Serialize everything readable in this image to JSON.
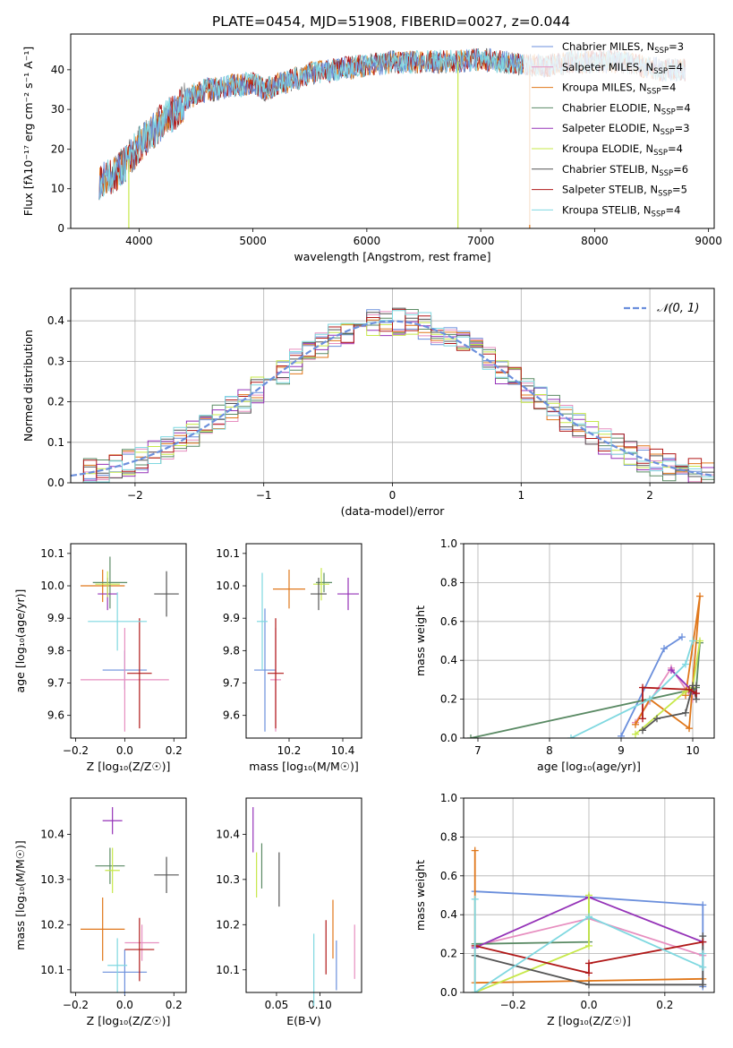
{
  "figure": {
    "title": "PLATE=0454, MJD=51908, FIBERID=0027, z=0.044"
  },
  "colors": {
    "Chabrier MILES": "#6b8fdc",
    "Salpeter MILES": "#e78fc0",
    "Kroupa MILES": "#e0771a",
    "Chabrier ELODIE": "#5a8a64",
    "Salpeter ELODIE": "#9533b8",
    "Kroupa ELODIE": "#c7e84a",
    "Chabrier STELIB": "#555555",
    "Salpeter STELIB": "#b01818",
    "Kroupa STELIB": "#7fd8e0",
    "gauss": "#6b8fdc",
    "grid": "#b0b0b0"
  },
  "legend_entries": [
    {
      "model": "Chabrier MILES",
      "label": "Chabrier MILES, N",
      "sub": "SSP",
      "eq": "=3"
    },
    {
      "model": "Salpeter MILES",
      "label": "Salpeter MILES, N",
      "sub": "SSP",
      "eq": "=4"
    },
    {
      "model": "Kroupa MILES",
      "label": "Kroupa MILES, N",
      "sub": "SSP",
      "eq": "=4"
    },
    {
      "model": "Chabrier ELODIE",
      "label": "Chabrier ELODIE, N",
      "sub": "SSP",
      "eq": "=4"
    },
    {
      "model": "Salpeter ELODIE",
      "label": "Salpeter ELODIE, N",
      "sub": "SSP",
      "eq": "=3"
    },
    {
      "model": "Kroupa ELODIE",
      "label": "Kroupa ELODIE, N",
      "sub": "SSP",
      "eq": "=4"
    },
    {
      "model": "Chabrier STELIB",
      "label": "Chabrier STELIB, N",
      "sub": "SSP",
      "eq": "=6"
    },
    {
      "model": "Salpeter STELIB",
      "label": "Salpeter STELIB, N",
      "sub": "SSP",
      "eq": "=5"
    },
    {
      "model": "Kroupa STELIB",
      "label": "Kroupa STELIB, N",
      "sub": "SSP",
      "eq": "=4"
    }
  ],
  "chart_data": [
    {
      "id": "spectrum",
      "type": "line",
      "xlabel": "wavelength [Angstrom, rest frame]",
      "ylabel": "Flux [fλ10⁻¹⁷ erg cm⁻² s⁻¹ A⁻¹]",
      "xlim": [
        3400,
        9050
      ],
      "ylim": [
        0,
        49
      ],
      "xticks": [
        4000,
        5000,
        6000,
        7000,
        8000,
        9000
      ],
      "yticks": [
        0,
        10,
        20,
        30,
        40
      ],
      "continuum": [
        [
          3650,
          12
        ],
        [
          3800,
          14
        ],
        [
          3900,
          17
        ],
        [
          4000,
          21
        ],
        [
          4100,
          24
        ],
        [
          4200,
          27
        ],
        [
          4300,
          29
        ],
        [
          4400,
          32
        ],
        [
          4500,
          34
        ],
        [
          4600,
          35
        ],
        [
          4700,
          35
        ],
        [
          4800,
          36
        ],
        [
          4900,
          36
        ],
        [
          5000,
          37
        ],
        [
          5100,
          35
        ],
        [
          5200,
          36
        ],
        [
          5300,
          37
        ],
        [
          5400,
          38
        ],
        [
          5500,
          39
        ],
        [
          5700,
          40
        ],
        [
          6000,
          41
        ],
        [
          6200,
          42
        ],
        [
          6400,
          42
        ],
        [
          6600,
          42
        ],
        [
          6800,
          42
        ],
        [
          7000,
          42.5
        ],
        [
          7200,
          42
        ],
        [
          7400,
          41
        ],
        [
          7600,
          41
        ],
        [
          7800,
          42
        ],
        [
          8000,
          42
        ],
        [
          8200,
          42
        ],
        [
          8400,
          41
        ],
        [
          8600,
          40
        ],
        [
          8800,
          40
        ]
      ],
      "noise_amplitude": 3
    },
    {
      "id": "residuals",
      "type": "histogram",
      "xlabel": "(data-model)/error",
      "ylabel": "Normed distribution",
      "xlim": [
        -2.5,
        2.5
      ],
      "ylim": [
        0,
        0.48
      ],
      "xticks": [
        -2,
        -1,
        0,
        1,
        2
      ],
      "yticks": [
        0.0,
        0.1,
        0.2,
        0.3,
        0.4
      ],
      "bin_width": 0.1,
      "legend": "𝒩(0, 1)",
      "histogram_noise": 0.035
    },
    {
      "id": "Z_vs_age",
      "type": "scatter",
      "xlabel": "Z [log₁₀(Z/Z☉)]",
      "ylabel": "age  [log₁₀(age/yr)]",
      "xlim": [
        -0.22,
        0.25
      ],
      "ylim": [
        9.53,
        10.13
      ],
      "xticks": [
        -0.2,
        0.0,
        0.2
      ],
      "yticks": [
        9.6,
        9.7,
        9.8,
        9.9,
        10.0,
        10.1
      ],
      "points": [
        {
          "model": "Chabrier MILES",
          "x": 0.0,
          "xerr": 0.09,
          "y": 9.74,
          "yerr": 0.06
        },
        {
          "model": "Salpeter MILES",
          "x": 0.0,
          "xerr": 0.18,
          "y": 9.71,
          "yerr": 0.16
        },
        {
          "model": "Kroupa MILES",
          "x": -0.09,
          "xerr": 0.09,
          "y": 10.0,
          "yerr": 0.05
        },
        {
          "model": "Chabrier ELODIE",
          "x": -0.06,
          "xerr": 0.07,
          "y": 10.01,
          "yerr": 0.08
        },
        {
          "model": "Salpeter ELODIE",
          "x": -0.07,
          "xerr": 0.04,
          "y": 9.975,
          "yerr": 0.05
        },
        {
          "model": "Kroupa ELODIE",
          "x": -0.07,
          "xerr": 0.05,
          "y": 10.005,
          "yerr": 0.04
        },
        {
          "model": "Chabrier STELIB",
          "x": 0.17,
          "xerr": 0.05,
          "y": 9.975,
          "yerr": 0.07
        },
        {
          "model": "Salpeter STELIB",
          "x": 0.06,
          "xerr": 0.05,
          "y": 9.73,
          "yerr": 0.17
        },
        {
          "model": "Kroupa STELIB",
          "x": -0.03,
          "xerr": 0.12,
          "y": 9.89,
          "yerr": 0.09
        }
      ]
    },
    {
      "id": "mass_vs_age",
      "type": "scatter",
      "xlabel": "mass [log₁₀(M/M☉)]",
      "ylabel": "",
      "xlim": [
        10.04,
        10.47
      ],
      "ylim": [
        9.53,
        10.13
      ],
      "xticks": [
        10.2,
        10.4
      ],
      "yticks": [
        9.6,
        9.7,
        9.8,
        9.9,
        10.0,
        10.1
      ],
      "points": [
        {
          "model": "Chabrier MILES",
          "x": 10.11,
          "xerr": 0.04,
          "y": 9.74,
          "yerr": 0.19
        },
        {
          "model": "Salpeter MILES",
          "x": 10.15,
          "xerr": 0.02,
          "y": 9.71,
          "yerr": 0.16
        },
        {
          "model": "Kroupa MILES",
          "x": 10.2,
          "xerr": 0.06,
          "y": 9.99,
          "yerr": 0.06
        },
        {
          "model": "Chabrier ELODIE",
          "x": 10.33,
          "xerr": 0.03,
          "y": 10.01,
          "yerr": 0.03
        },
        {
          "model": "Salpeter ELODIE",
          "x": 10.42,
          "xerr": 0.04,
          "y": 9.975,
          "yerr": 0.05
        },
        {
          "model": "Kroupa ELODIE",
          "x": 10.32,
          "xerr": 0.03,
          "y": 10.005,
          "yerr": 0.05
        },
        {
          "model": "Chabrier STELIB",
          "x": 10.31,
          "xerr": 0.03,
          "y": 9.975,
          "yerr": 0.05
        },
        {
          "model": "Salpeter STELIB",
          "x": 10.15,
          "xerr": 0.03,
          "y": 9.73,
          "yerr": 0.17
        },
        {
          "model": "Kroupa STELIB",
          "x": 10.1,
          "xerr": 0.02,
          "y": 9.89,
          "yerr": 0.15
        }
      ]
    },
    {
      "id": "age_vs_weight",
      "type": "line",
      "xlabel": "age  [log₁₀(age/yr)]",
      "ylabel": "mass weight",
      "xlim": [
        6.8,
        10.3
      ],
      "ylim": [
        0,
        1
      ],
      "xticks": [
        7,
        8,
        9,
        10
      ],
      "yticks": [
        0.0,
        0.2,
        0.4,
        0.6,
        0.8,
        1.0
      ],
      "grid": true,
      "series": [
        {
          "model": "Chabrier MILES",
          "x": [
            9.0,
            9.6,
            9.85
          ],
          "y": [
            0.01,
            0.46,
            0.52
          ]
        },
        {
          "model": "Salpeter MILES",
          "x": [
            9.2,
            9.4,
            9.7,
            10.0
          ],
          "y": [
            0.08,
            0.19,
            0.36,
            0.2
          ]
        },
        {
          "model": "Kroupa MILES",
          "x": [
            9.2,
            9.4,
            9.95,
            10.1,
            9.9
          ],
          "y": [
            0.07,
            0.2,
            0.05,
            0.73,
            0.22
          ]
        },
        {
          "model": "Chabrier ELODIE",
          "x": [
            6.9,
            10.0,
            10.05,
            10.1
          ],
          "y": [
            0.0,
            0.25,
            0.26,
            0.49
          ]
        },
        {
          "model": "Salpeter ELODIE",
          "x": [
            9.7,
            10.0,
            10.05
          ],
          "y": [
            0.35,
            0.24,
            0.23
          ]
        },
        {
          "model": "Kroupa ELODIE",
          "x": [
            9.2,
            9.9,
            10.0,
            10.1
          ],
          "y": [
            0.02,
            0.24,
            0.26,
            0.5
          ]
        },
        {
          "model": "Chabrier STELIB",
          "x": [
            9.3,
            9.5,
            9.9,
            10.0,
            10.05,
            10.05
          ],
          "y": [
            0.04,
            0.1,
            0.13,
            0.27,
            0.2,
            0.27
          ]
        },
        {
          "model": "Salpeter STELIB",
          "x": [
            9.3,
            9.3,
            9.95,
            10.05
          ],
          "y": [
            0.1,
            0.26,
            0.25,
            0.23
          ]
        },
        {
          "model": "Kroupa STELIB",
          "x": [
            8.3,
            9.4,
            9.9,
            10.0
          ],
          "y": [
            0.0,
            0.2,
            0.38,
            0.5
          ]
        }
      ]
    },
    {
      "id": "Z_vs_mass",
      "type": "scatter",
      "xlabel": "Z [log₁₀(Z/Z☉)]",
      "ylabel": "mass [log₁₀(M/M☉)]",
      "xlim": [
        -0.22,
        0.25
      ],
      "ylim": [
        10.05,
        10.48
      ],
      "xticks": [
        -0.2,
        0.0,
        0.2
      ],
      "yticks": [
        10.1,
        10.2,
        10.3,
        10.4
      ],
      "points": [
        {
          "model": "Chabrier MILES",
          "x": 0.0,
          "xerr": 0.09,
          "y": 10.095,
          "yerr": 0.05
        },
        {
          "model": "Salpeter MILES",
          "x": 0.07,
          "xerr": 0.07,
          "y": 10.16,
          "yerr": 0.04
        },
        {
          "model": "Kroupa MILES",
          "x": -0.09,
          "xerr": 0.09,
          "y": 10.19,
          "yerr": 0.07
        },
        {
          "model": "Chabrier ELODIE",
          "x": -0.06,
          "xerr": 0.06,
          "y": 10.33,
          "yerr": 0.04
        },
        {
          "model": "Salpeter ELODIE",
          "x": -0.05,
          "xerr": 0.04,
          "y": 10.43,
          "yerr": 0.03
        },
        {
          "model": "Kroupa ELODIE",
          "x": -0.05,
          "xerr": 0.03,
          "y": 10.32,
          "yerr": 0.05
        },
        {
          "model": "Chabrier STELIB",
          "x": 0.17,
          "xerr": 0.05,
          "y": 10.31,
          "yerr": 0.04
        },
        {
          "model": "Salpeter STELIB",
          "x": 0.06,
          "xerr": 0.06,
          "y": 10.145,
          "yerr": 0.07
        },
        {
          "model": "Kroupa STELIB",
          "x": -0.03,
          "xerr": 0.04,
          "y": 10.11,
          "yerr": 0.06
        }
      ]
    },
    {
      "id": "ebv_vs_mass",
      "type": "scatter",
      "xlabel": "E(B-V)",
      "ylabel": "",
      "xlim": [
        0.015,
        0.148
      ],
      "ylim": [
        10.05,
        10.48
      ],
      "xticks": [
        0.05,
        0.1
      ],
      "yticks": [
        10.1,
        10.2,
        10.3,
        10.4
      ],
      "points": [
        {
          "model": "Chabrier MILES",
          "x": 0.119,
          "xerr": 0,
          "y": 10.11,
          "yerr": 0.055
        },
        {
          "model": "Salpeter MILES",
          "x": 0.14,
          "xerr": 0,
          "y": 10.14,
          "yerr": 0.06
        },
        {
          "model": "Kroupa MILES",
          "x": 0.115,
          "xerr": 0,
          "y": 10.19,
          "yerr": 0.065
        },
        {
          "model": "Chabrier ELODIE",
          "x": 0.033,
          "xerr": 0,
          "y": 10.33,
          "yerr": 0.05
        },
        {
          "model": "Salpeter ELODIE",
          "x": 0.023,
          "xerr": 0,
          "y": 10.41,
          "yerr": 0.05
        },
        {
          "model": "Kroupa ELODIE",
          "x": 0.027,
          "xerr": 0,
          "y": 10.31,
          "yerr": 0.05
        },
        {
          "model": "Chabrier STELIB",
          "x": 0.053,
          "xerr": 0,
          "y": 10.3,
          "yerr": 0.06
        },
        {
          "model": "Salpeter STELIB",
          "x": 0.107,
          "xerr": 0,
          "y": 10.15,
          "yerr": 0.06
        },
        {
          "model": "Kroupa STELIB",
          "x": 0.093,
          "xerr": 0,
          "y": 10.1,
          "yerr": 0.08
        }
      ]
    },
    {
      "id": "Z_vs_weight",
      "type": "line",
      "xlabel": "Z [log₁₀(Z/Z☉)]",
      "ylabel": "mass weight",
      "xlim": [
        -0.33,
        0.33
      ],
      "ylim": [
        0,
        1
      ],
      "xticks": [
        -0.2,
        0.0,
        0.2
      ],
      "yticks": [
        0.0,
        0.2,
        0.4,
        0.6,
        0.8,
        1.0
      ],
      "grid": true,
      "series": [
        {
          "model": "Chabrier MILES",
          "x": [
            -0.3,
            0.0,
            0.3,
            0.3
          ],
          "y": [
            0.52,
            0.49,
            0.45,
            0.03
          ]
        },
        {
          "model": "Salpeter MILES",
          "x": [
            -0.3,
            0.0,
            0.3
          ],
          "y": [
            0.24,
            0.38,
            0.19
          ]
        },
        {
          "model": "Kroupa MILES",
          "x": [
            -0.3,
            -0.3,
            0.0,
            0.3
          ],
          "y": [
            0.73,
            0.05,
            0.06,
            0.07
          ]
        },
        {
          "model": "Chabrier ELODIE",
          "x": [
            -0.3,
            0.0,
            0.0
          ],
          "y": [
            0.25,
            0.26,
            0.49
          ]
        },
        {
          "model": "Salpeter ELODIE",
          "x": [
            -0.3,
            0.0,
            0.3
          ],
          "y": [
            0.23,
            0.49,
            0.26
          ]
        },
        {
          "model": "Kroupa ELODIE",
          "x": [
            -0.3,
            0.0,
            0.0
          ],
          "y": [
            0.0,
            0.24,
            0.5
          ]
        },
        {
          "model": "Chabrier STELIB",
          "x": [
            -0.3,
            0.0,
            0.3,
            0.3
          ],
          "y": [
            0.19,
            0.04,
            0.04,
            0.29
          ]
        },
        {
          "model": "Salpeter STELIB",
          "x": [
            -0.3,
            0.0,
            0.0,
            0.3
          ],
          "y": [
            0.24,
            0.1,
            0.15,
            0.26
          ]
        },
        {
          "model": "Kroupa STELIB",
          "x": [
            -0.3,
            -0.3,
            0.0,
            0.3,
            0.3
          ],
          "y": [
            0.48,
            0.0,
            0.39,
            0.13,
            0.2
          ]
        }
      ]
    }
  ]
}
